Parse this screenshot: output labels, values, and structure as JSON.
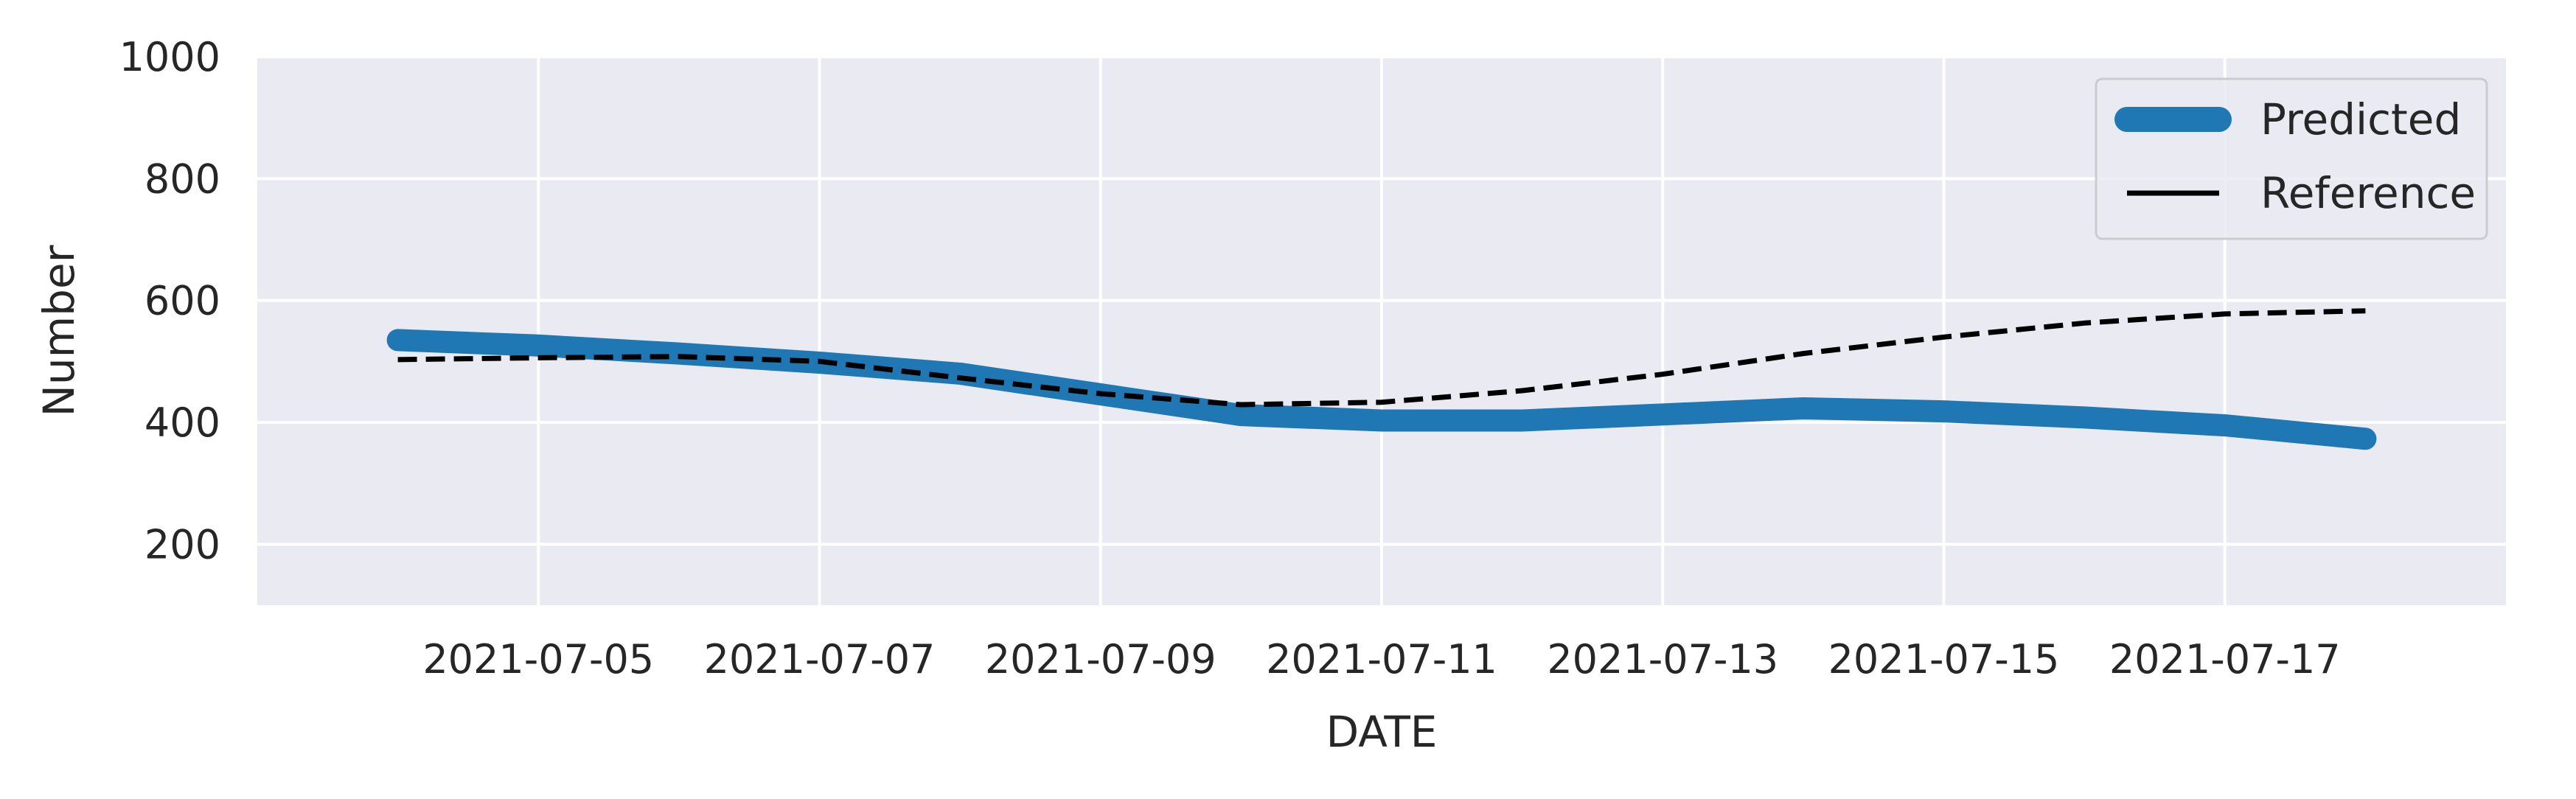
{
  "chart_data": {
    "type": "line",
    "title": "",
    "xlabel": "DATE",
    "ylabel": "Number",
    "x": [
      "2021-07-04",
      "2021-07-05",
      "2021-07-06",
      "2021-07-07",
      "2021-07-08",
      "2021-07-09",
      "2021-07-10",
      "2021-07-11",
      "2021-07-12",
      "2021-07-13",
      "2021-07-14",
      "2021-07-15",
      "2021-07-16",
      "2021-07-17",
      "2021-07-18"
    ],
    "series": [
      {
        "name": "Predicted",
        "color": "#1f77b4",
        "style": "solid-thick",
        "values": [
          535,
          526,
          513,
          498,
          480,
          446,
          412,
          403,
          403,
          413,
          423,
          418,
          408,
          395,
          373
        ]
      },
      {
        "name": "Reference",
        "color": "#000000",
        "style": "dashed",
        "values": [
          503,
          506,
          508,
          500,
          473,
          447,
          429,
          433,
          452,
          479,
          513,
          540,
          563,
          578,
          583
        ]
      }
    ],
    "xticks": [
      "2021-07-05",
      "2021-07-07",
      "2021-07-09",
      "2021-07-11",
      "2021-07-13",
      "2021-07-15",
      "2021-07-17"
    ],
    "yticks": [
      200,
      400,
      600,
      800,
      1000
    ],
    "ylim": [
      100,
      1000
    ],
    "xlim": [
      "2021-07-03",
      "2021-07-19"
    ],
    "grid": true,
    "legend_position": "top-right",
    "plot_background": "#eaeaf2"
  }
}
